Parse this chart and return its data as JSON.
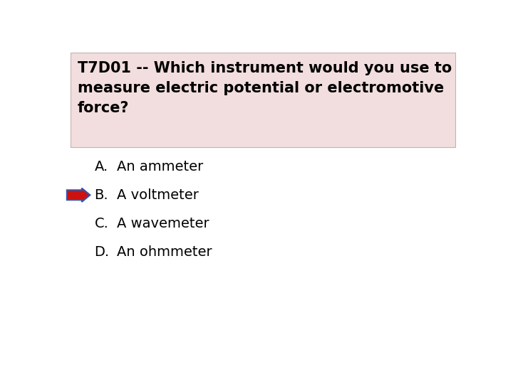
{
  "title_text": "T7D01 -- Which instrument would you use to\nmeasure electric potential or electromotive\nforce?",
  "title_bg_color": "#f2dede",
  "title_border_color": "#c9b0b0",
  "options": [
    {
      "label": "A.",
      "text": "An ammeter"
    },
    {
      "label": "B.",
      "text": "A voltmeter"
    },
    {
      "label": "C.",
      "text": "A wavemeter"
    },
    {
      "label": "D.",
      "text": "An ohmmeter"
    }
  ],
  "correct_index": 1,
  "arrow_fill_color": "#cc1111",
  "arrow_edge_color": "#3355aa",
  "bg_color": "#ffffff",
  "text_color": "#000000",
  "title_fontsize": 15,
  "option_fontsize": 14,
  "fig_width": 7.2,
  "fig_height": 5.4,
  "dpi": 100
}
